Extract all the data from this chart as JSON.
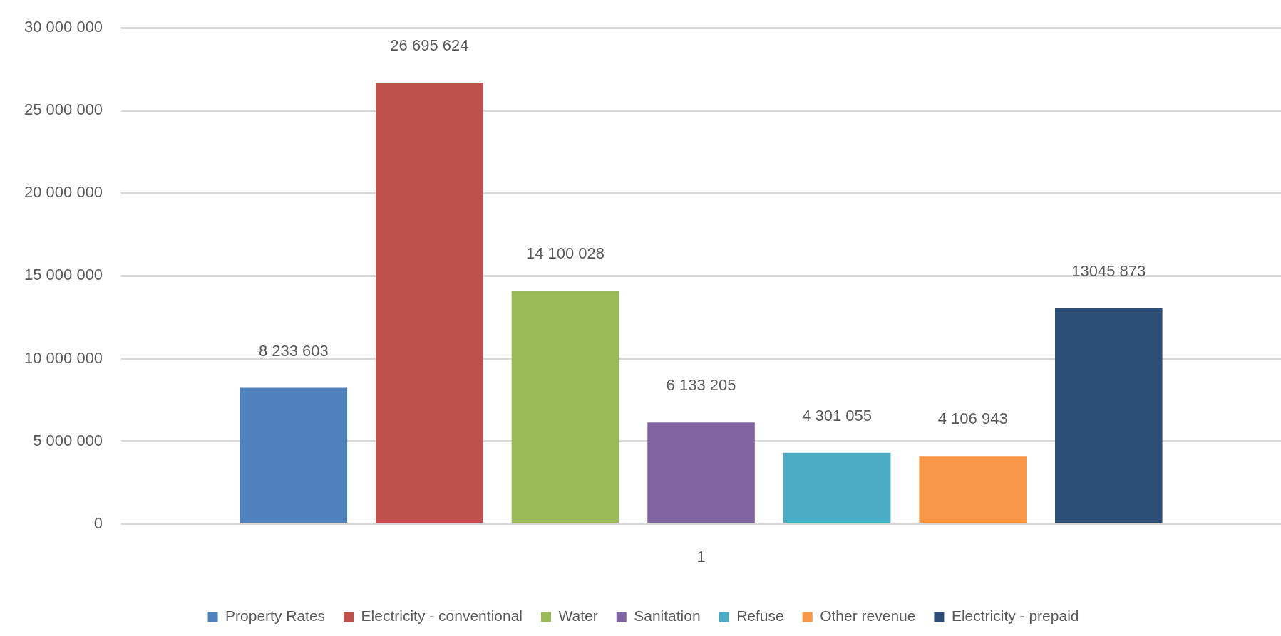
{
  "chart_data": {
    "type": "bar",
    "categories": [
      "1"
    ],
    "series": [
      {
        "name": "Property Rates",
        "color": "#4f81bd",
        "values": [
          8233603
        ],
        "value_labels": [
          "8 233 603"
        ]
      },
      {
        "name": "Electricity - conventional",
        "color": "#c0504d",
        "values": [
          26695624
        ],
        "value_labels": [
          "26 695 624"
        ]
      },
      {
        "name": "Water",
        "color": "#9bbb59",
        "values": [
          14100028
        ],
        "value_labels": [
          "14 100 028"
        ]
      },
      {
        "name": "Sanitation",
        "color": "#8064a2",
        "values": [
          6133205
        ],
        "value_labels": [
          "6 133 205"
        ]
      },
      {
        "name": "Refuse",
        "color": "#4bacc6",
        "values": [
          4301055
        ],
        "value_labels": [
          "4 301 055"
        ]
      },
      {
        "name": "Other revenue",
        "color": "#f79646",
        "values": [
          4106943
        ],
        "value_labels": [
          "4 106 943"
        ]
      },
      {
        "name": "Electricity - prepaid",
        "color": "#2c4d75",
        "values": [
          13045873
        ],
        "value_labels": [
          "13045 873"
        ]
      }
    ],
    "ylim": [
      0,
      30000000
    ],
    "yticks": [
      0,
      {
        "value": 5000000,
        "label": "5 000 000"
      },
      {
        "value": 10000000,
        "label": "10 000 000"
      },
      {
        "value": 15000000,
        "label": "15 000 000"
      },
      {
        "value": 20000000,
        "label": "20 000 000"
      },
      {
        "value": 25000000,
        "label": "25 000 000"
      },
      {
        "value": 30000000,
        "label": "30 000 000"
      }
    ],
    "grid": "y",
    "legend": "bottom"
  }
}
